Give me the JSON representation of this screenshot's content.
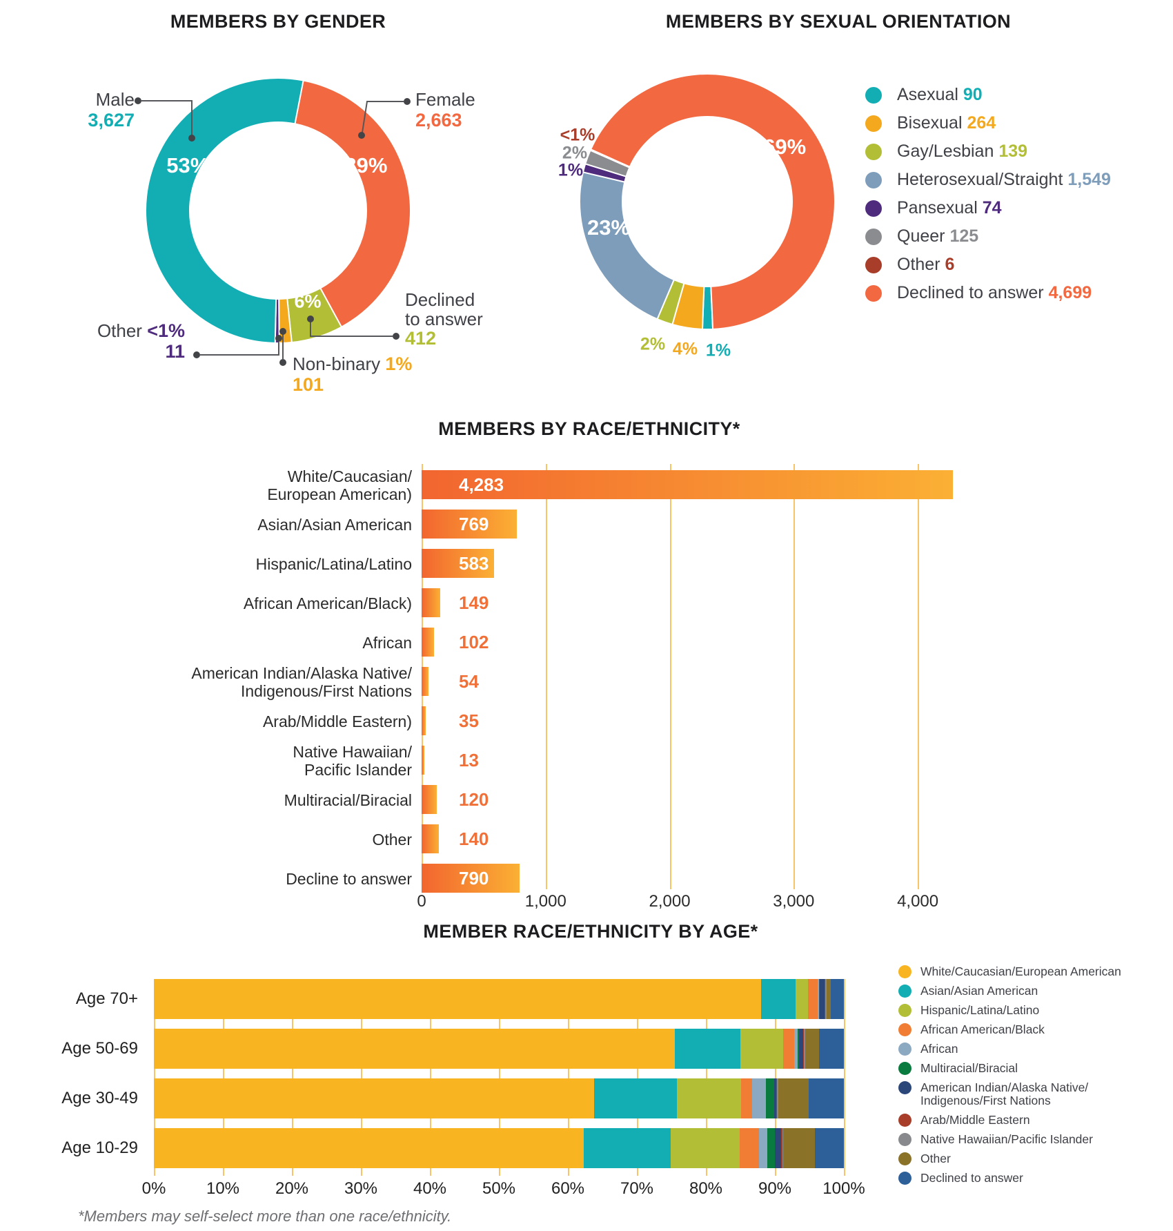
{
  "footnote": "*Members may self-select more than one race/ethnicity.",
  "chart_data": [
    {
      "type": "donut",
      "title": "MEMBERS BY GENDER",
      "slices": [
        {
          "name": "Female",
          "value": "2,663",
          "pct": "39%",
          "pct_num": 39.0,
          "color": "#F26841"
        },
        {
          "name": "Declined to answer",
          "value": "412",
          "pct": "6%",
          "pct_num": 6.3,
          "color": "#B2BE35"
        },
        {
          "name": "Non-binary",
          "value": "101",
          "pct": "1%",
          "pct_num": 1.5,
          "color": "#F3A81D"
        },
        {
          "name": "Other",
          "value": "11",
          "pct": "<1%",
          "pct_num": 0.5,
          "color": "#4F2B7E"
        },
        {
          "name": "Male",
          "value": "3,627",
          "pct": "53%",
          "pct_num": 52.7,
          "color": "#12AEB4"
        }
      ]
    },
    {
      "type": "donut",
      "title": "MEMBERS BY SEXUAL ORIENTATION",
      "slices": [
        {
          "name": "Asexual",
          "value": "90",
          "pct": "1%",
          "pct_num": 1.3,
          "color": "#12AEB4"
        },
        {
          "name": "Bisexual",
          "value": "264",
          "pct": "4%",
          "pct_num": 3.8,
          "color": "#F3A81D"
        },
        {
          "name": "Gay/Lesbian",
          "value": "139",
          "pct": "2%",
          "pct_num": 2.0,
          "color": "#B2BE35"
        },
        {
          "name": "Heterosexual/Straight",
          "value": "1,549",
          "pct": "23%",
          "pct_num": 22.3,
          "color": "#7E9DBB"
        },
        {
          "name": "Pansexual",
          "value": "74",
          "pct": "1%",
          "pct_num": 1.07,
          "color": "#4F2B7E"
        },
        {
          "name": "Queer",
          "value": "125",
          "pct": "2%",
          "pct_num": 1.8,
          "color": "#8A8C8F"
        },
        {
          "name": "Other",
          "value": "6",
          "pct": "<1%",
          "pct_num": 0.13,
          "color": "#A83D2A"
        },
        {
          "name": "Declined to answer",
          "value": "4,699",
          "pct": "69%",
          "pct_num": 67.6,
          "color": "#F26841"
        }
      ]
    },
    {
      "type": "bar",
      "title": "MEMBERS BY RACE/ETHNICITY*",
      "axis_ticks": [
        "0",
        "1,000",
        "2,000",
        "3,000",
        "4,000"
      ],
      "axis_tick_values": [
        0,
        1000,
        2000,
        3000,
        4000
      ],
      "axis_max": 4450,
      "bar_gradient": [
        "#F2652F",
        "#FBB034"
      ],
      "value_color_inside": "#FFFFFF",
      "value_color_outside": "#F07038",
      "bars": [
        {
          "label_lines": [
            "White/Caucasian/",
            "European American)"
          ],
          "value": 4283,
          "value_text": "4,283"
        },
        {
          "label_lines": [
            "Asian/Asian American"
          ],
          "value": 769,
          "value_text": "769"
        },
        {
          "label_lines": [
            "Hispanic/Latina/Latino"
          ],
          "value": 583,
          "value_text": "583"
        },
        {
          "label_lines": [
            "African American/Black)"
          ],
          "value": 149,
          "value_text": "149"
        },
        {
          "label_lines": [
            "African"
          ],
          "value": 102,
          "value_text": "102"
        },
        {
          "label_lines": [
            "American Indian/Alaska Native/",
            "Indigenous/First Nations"
          ],
          "value": 54,
          "value_text": "54"
        },
        {
          "label_lines": [
            "Arab/Middle Eastern)"
          ],
          "value": 35,
          "value_text": "35"
        },
        {
          "label_lines": [
            "Native Hawaiian/",
            "Pacific Islander"
          ],
          "value": 13,
          "value_text": "13"
        },
        {
          "label_lines": [
            "Multiracial/Biracial"
          ],
          "value": 120,
          "value_text": "120"
        },
        {
          "label_lines": [
            "Other"
          ],
          "value": 140,
          "value_text": "140"
        },
        {
          "label_lines": [
            "Decline to answer"
          ],
          "value": 790,
          "value_text": "790"
        }
      ]
    },
    {
      "type": "stacked_bar_100",
      "title": "MEMBER RACE/ETHNICITY BY AGE*",
      "axis_ticks": [
        "0%",
        "10%",
        "20%",
        "30%",
        "40%",
        "50%",
        "60%",
        "70%",
        "80%",
        "90%",
        "100%"
      ],
      "categories": [
        {
          "label_lines": [
            "White/Caucasian/European American"
          ],
          "color": "#F8B421"
        },
        {
          "label_lines": [
            "Asian/Asian American"
          ],
          "color": "#12AEB4"
        },
        {
          "label_lines": [
            "Hispanic/Latina/Latino"
          ],
          "color": "#B2BE35"
        },
        {
          "label_lines": [
            "African American/Black"
          ],
          "color": "#F07D33"
        },
        {
          "label_lines": [
            "African"
          ],
          "color": "#8CA9C2"
        },
        {
          "label_lines": [
            "Multiracial/Biracial"
          ],
          "color": "#0A7B3E"
        },
        {
          "label_lines": [
            "American Indian/Alaska Native/",
            "Indigenous/First Nations"
          ],
          "color": "#2B4679"
        },
        {
          "label_lines": [
            "Arab/Middle Eastern"
          ],
          "color": "#A83D2A"
        },
        {
          "label_lines": [
            "Native Hawaiian/Pacific Islander"
          ],
          "color": "#87898C"
        },
        {
          "label_lines": [
            "Other"
          ],
          "color": "#8A7229"
        },
        {
          "label_lines": [
            "Declined to answer"
          ],
          "color": "#2D5F99"
        }
      ],
      "rows": [
        {
          "label": "Age 70+",
          "values": [
            88.0,
            5.0,
            1.8,
            1.4,
            0.2,
            0.1,
            0.7,
            0.1,
            0.2,
            0.6,
            1.9
          ]
        },
        {
          "label": "Age 50-69",
          "values": [
            75.5,
            9.5,
            6.2,
            1.6,
            0.5,
            0.2,
            0.6,
            0.1,
            0.2,
            2.0,
            3.6
          ]
        },
        {
          "label": "Age 30-49",
          "values": [
            63.8,
            12.0,
            9.3,
            1.6,
            2.0,
            1.2,
            0.3,
            0.1,
            0.2,
            4.4,
            5.1
          ]
        },
        {
          "label": "Age 10-29",
          "values": [
            62.3,
            12.6,
            10.0,
            2.8,
            1.2,
            1.1,
            0.9,
            0.2,
            0.1,
            4.6,
            4.2
          ]
        }
      ]
    }
  ]
}
